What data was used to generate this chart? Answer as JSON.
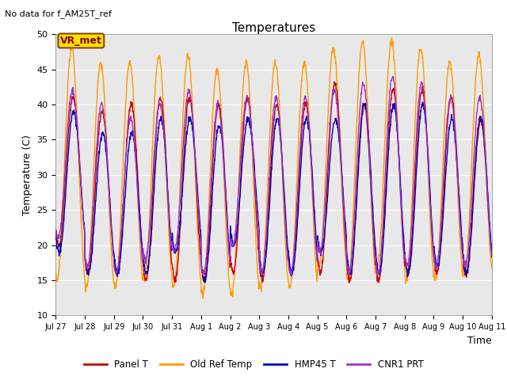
{
  "title": "Temperatures",
  "ylabel": "Temperature (C)",
  "xlabel": "Time",
  "ylim": [
    10,
    50
  ],
  "note": "No data for f_AM25T_ref",
  "vr_met_label": "VR_met",
  "plot_bg_color": "#e8e8e8",
  "fig_bg_color": "#ffffff",
  "legend": [
    "Panel T",
    "Old Ref Temp",
    "HMP45 T",
    "CNR1 PRT"
  ],
  "colors": [
    "#cc0000",
    "#ff9900",
    "#0000bb",
    "#9933cc"
  ],
  "num_days": 15,
  "points_per_day": 96,
  "panel_t_min": [
    20,
    16,
    16,
    15,
    15,
    15,
    16,
    15,
    16,
    16,
    15,
    15,
    16,
    16,
    16
  ],
  "panel_t_max": [
    41,
    39,
    40,
    41,
    41,
    40,
    41,
    40,
    40,
    43,
    40,
    42,
    42,
    41,
    38
  ],
  "old_ref_min": [
    15,
    14,
    14,
    15,
    14,
    13,
    13,
    14,
    14,
    17,
    15,
    17,
    15,
    15,
    16
  ],
  "old_ref_max": [
    48,
    46,
    46,
    47,
    47,
    45,
    46,
    46,
    46,
    48,
    49,
    49,
    48,
    46,
    47
  ],
  "hmp45_min": [
    19,
    16,
    16,
    16,
    19,
    15,
    20,
    16,
    16,
    19,
    16,
    16,
    16,
    17,
    16
  ],
  "hmp45_max": [
    39,
    36,
    36,
    38,
    38,
    37,
    38,
    38,
    38,
    38,
    40,
    40,
    40,
    38,
    38
  ],
  "cnr1_min": [
    21,
    17,
    16,
    18,
    19,
    16,
    20,
    16,
    16,
    19,
    16,
    16,
    17,
    17,
    17
  ],
  "cnr1_max": [
    42,
    40,
    38,
    40,
    42,
    40,
    41,
    41,
    41,
    42,
    43,
    44,
    43,
    41,
    41
  ],
  "tick_labels": [
    "Jul 27",
    "Jul 28",
    "Jul 29",
    "Jul 30",
    "Jul 31",
    "Aug 1",
    "Aug 2",
    "Aug 3",
    "Aug 4",
    "Aug 5",
    "Aug 6",
    "Aug 7",
    "Aug 8",
    "Aug 9",
    "Aug 10",
    "Aug 11"
  ],
  "panel_phase": 0.1,
  "old_ref_phase": 0.05,
  "hmp45_phase": 0.12,
  "cnr1_phase": 0.08,
  "noise_std": 0.25
}
